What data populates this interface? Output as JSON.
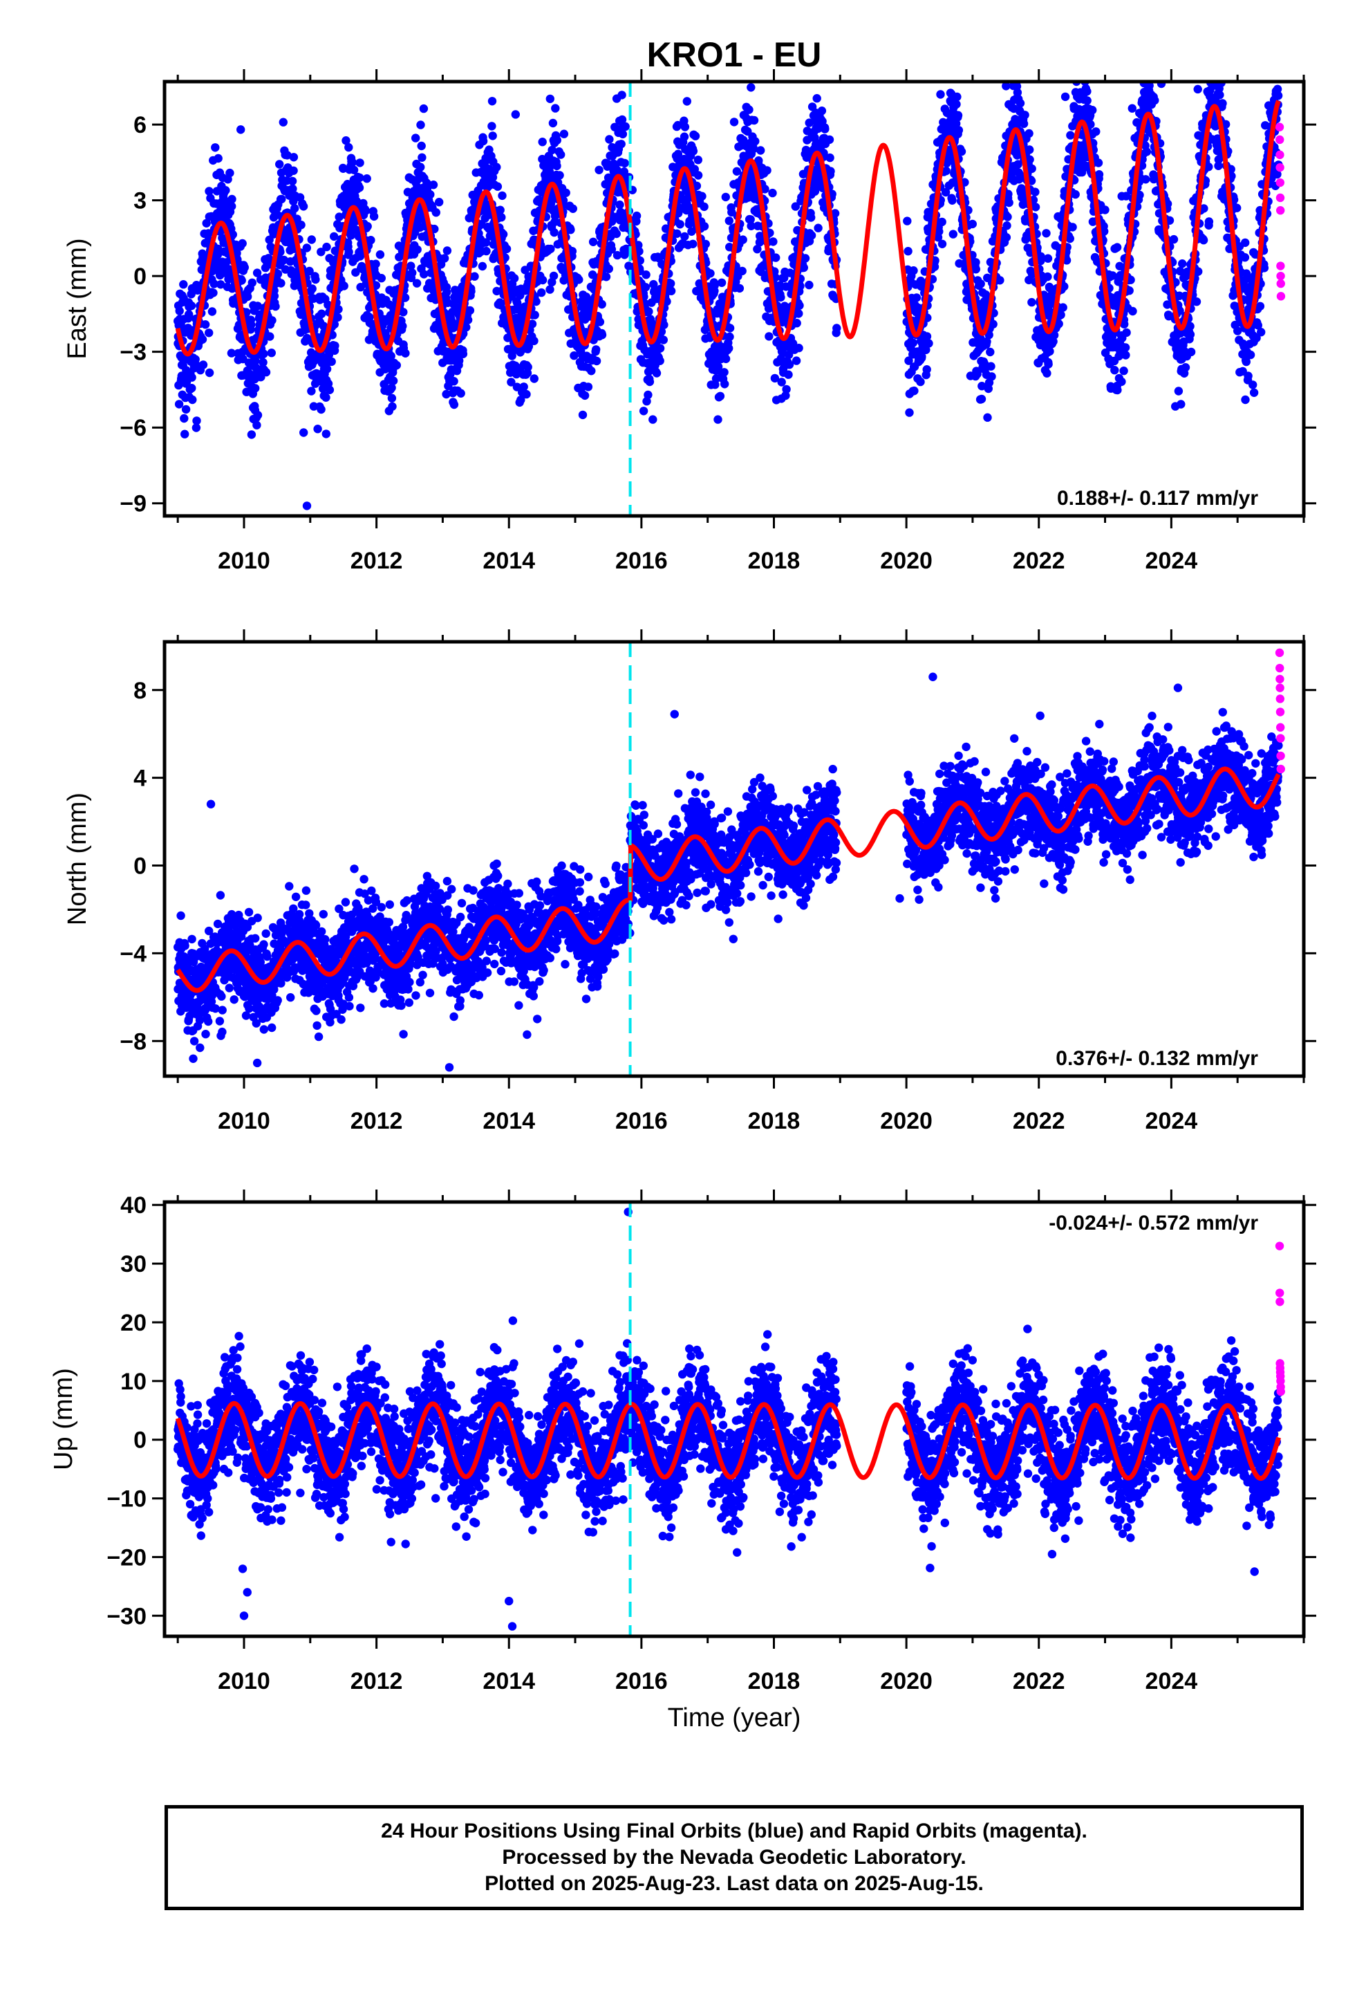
{
  "title": "KRO1 - EU",
  "xlabel": "Time (year)",
  "footer": {
    "line1": "24 Hour Positions Using Final Orbits (blue) and Rapid Orbits (magenta).",
    "line2": "Processed by the Nevada Geodetic Laboratory.",
    "line3": "Plotted on 2025-Aug-23. Last data on 2025-Aug-15."
  },
  "colors": {
    "final": "#0000ff",
    "rapid": "#ff00ff",
    "model": "#ff0000",
    "step": "#00e5ee",
    "frame": "#000000"
  },
  "chart_data": [
    {
      "type": "scatter",
      "name": "east",
      "ylabel": "East (mm)",
      "rate": "0.188+/- 0.117 mm/yr",
      "rate_position": "bottom-right",
      "xlim": [
        2008.8,
        2026.0
      ],
      "ylim": [
        -9.5,
        7.7
      ],
      "xticks": [
        2010,
        2012,
        2014,
        2016,
        2018,
        2020,
        2022,
        2024
      ],
      "xtick_labels": [
        "2010",
        "2012",
        "2014",
        "2016",
        "2018",
        "2020",
        "2022",
        "2024"
      ],
      "yticks": [
        -9,
        -6,
        -3,
        0,
        3,
        6
      ],
      "ytick_labels": [
        "−9",
        "−6",
        "−3",
        "0",
        "3",
        "6"
      ],
      "step_epoch": 2015.83,
      "data_start": 2009.0,
      "data_end": 2025.62,
      "gap": [
        2018.95,
        2020.0
      ],
      "model": {
        "offset": -0.6,
        "trend": 0.188,
        "amplitude": 2.5,
        "amplitude_growth": 0.12,
        "phase_year": 2009.4,
        "step": 0.0
      },
      "scatter_sd": 1.3,
      "outliers": [
        [
          2009.95,
          5.8
        ],
        [
          2010.95,
          -9.1
        ],
        [
          2014.1,
          6.4
        ],
        [
          2017.4,
          6.1
        ],
        [
          2013.7,
          5.0
        ],
        [
          2024.4,
          7.4
        ],
        [
          2022.4,
          7.1
        ],
        [
          2010.9,
          -6.2
        ]
      ],
      "rapid_values": [
        5.9,
        5.4,
        4.8,
        4.3,
        3.7,
        3.1,
        2.6,
        0.4,
        0.0,
        -0.3,
        -0.8
      ]
    },
    {
      "type": "scatter",
      "name": "north",
      "ylabel": "North (mm)",
      "rate": "0.376+/- 0.132 mm/yr",
      "rate_position": "bottom-right",
      "xlim": [
        2008.8,
        2026.0
      ],
      "ylim": [
        -9.6,
        10.2
      ],
      "xticks": [
        2010,
        2012,
        2014,
        2016,
        2018,
        2020,
        2022,
        2024
      ],
      "xtick_labels": [
        "2010",
        "2012",
        "2014",
        "2016",
        "2018",
        "2020",
        "2022",
        "2024"
      ],
      "yticks": [
        -8,
        -4,
        0,
        4,
        8
      ],
      "ytick_labels": [
        "−8",
        "−4",
        "0",
        "4",
        "8"
      ],
      "step_epoch": 2015.83,
      "data_start": 2009.0,
      "data_end": 2025.62,
      "gap": [
        2018.95,
        2020.0
      ],
      "model": {
        "offset": -5.0,
        "trend": 0.376,
        "amplitude": 0.8,
        "amplitude_growth": 0.01,
        "phase_year": 2009.55,
        "step": 2.5
      },
      "scatter_sd": 1.05,
      "outliers": [
        [
          2009.5,
          2.8
        ],
        [
          2016.5,
          6.9
        ],
        [
          2020.4,
          8.6
        ],
        [
          2013.1,
          -9.2
        ],
        [
          2010.2,
          -9.0
        ],
        [
          2019.9,
          -1.5
        ],
        [
          2024.1,
          8.1
        ]
      ],
      "rapid_values": [
        9.7,
        9.0,
        8.5,
        8.1,
        7.6,
        7.0,
        6.3,
        5.8,
        5.0,
        4.4
      ]
    },
    {
      "type": "scatter",
      "name": "up",
      "ylabel": "Up (mm)",
      "rate": "-0.024+/- 0.572 mm/yr",
      "rate_position": "top-right",
      "xlim": [
        2008.8,
        2026.0
      ],
      "ylim": [
        -33.5,
        40.5
      ],
      "xticks": [
        2010,
        2012,
        2014,
        2016,
        2018,
        2020,
        2022,
        2024
      ],
      "xtick_labels": [
        "2010",
        "2012",
        "2014",
        "2016",
        "2018",
        "2020",
        "2022",
        "2024"
      ],
      "yticks": [
        -30,
        -20,
        -10,
        0,
        10,
        20,
        30,
        40
      ],
      "ytick_labels": [
        "−30",
        "−20",
        "−10",
        "0",
        "10",
        "20",
        "30",
        "40"
      ],
      "step_epoch": 2015.83,
      "data_start": 2009.0,
      "data_end": 2025.62,
      "gap": [
        2018.95,
        2020.0
      ],
      "model": {
        "offset": 0.0,
        "trend": -0.024,
        "amplitude": 6.2,
        "amplitude_growth": 0.0,
        "phase_year": 2009.6,
        "step": 0.0
      },
      "scatter_sd": 4.6,
      "outliers": [
        [
          2015.8,
          38.8
        ],
        [
          2014.05,
          -31.8
        ],
        [
          2010.0,
          -30.0
        ],
        [
          2009.98,
          -22.0
        ],
        [
          2022.2,
          -19.5
        ],
        [
          2014.0,
          -27.5
        ],
        [
          2010.05,
          -26.0
        ]
      ],
      "rapid_values": [
        33.0,
        25.0,
        23.5,
        13.0,
        12.2,
        11.5,
        10.8,
        10.0,
        9.0,
        8.2
      ]
    }
  ]
}
